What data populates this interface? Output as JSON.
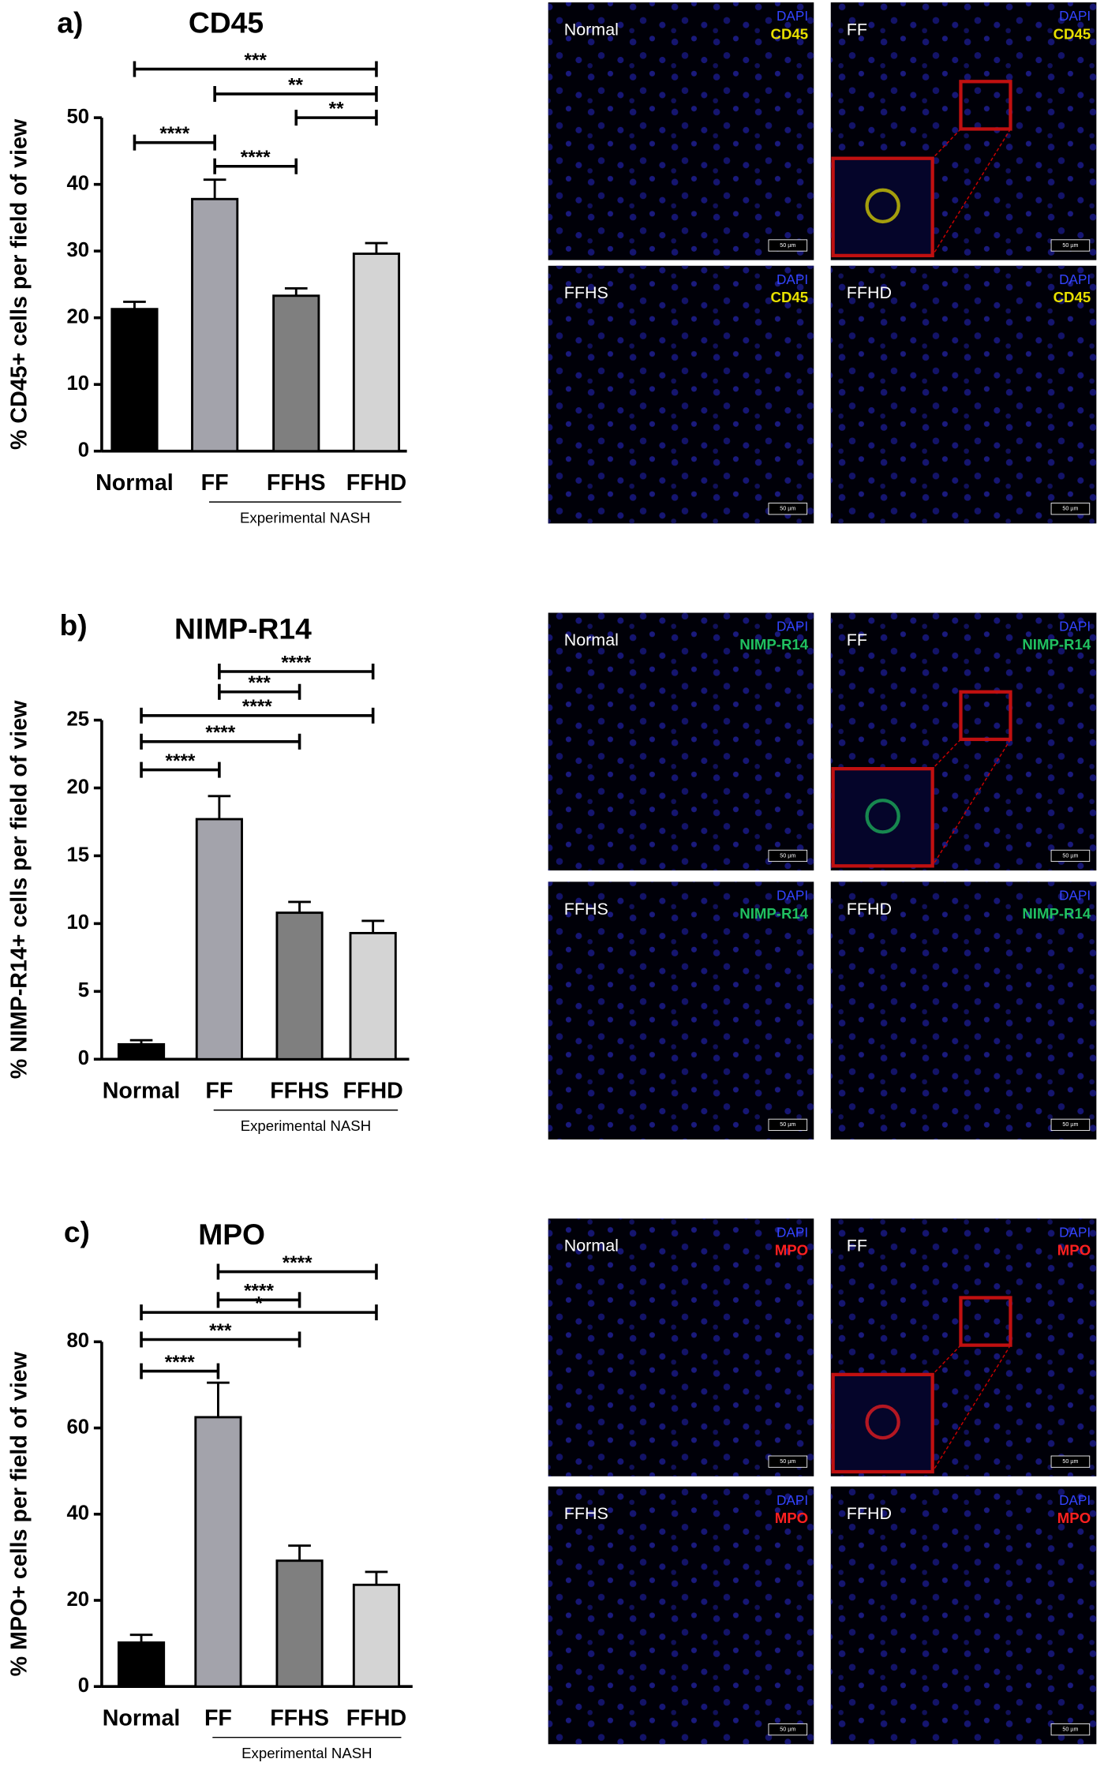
{
  "chart_data": [
    {
      "type": "bar",
      "panel_label": "a)",
      "title": "CD45",
      "y_label": "% CD45+ cells per field of view",
      "categories": [
        "Normal",
        "FF",
        "FFHS",
        "FFHD"
      ],
      "values": [
        21.3,
        37.8,
        23.3,
        29.6
      ],
      "errors": [
        1.1,
        2.9,
        1.1,
        1.6
      ],
      "colors": [
        "#000000",
        "#a3a3ab",
        "#7f7f7f",
        "#d4d4d4"
      ],
      "ylim": [
        0,
        50
      ],
      "yticks": [
        0,
        10,
        20,
        30,
        40,
        50
      ],
      "group_label": "Experimental NASH",
      "significance": [
        {
          "groups": [
            "Normal",
            "FFHD"
          ],
          "label": "***"
        },
        {
          "groups": [
            "FF",
            "FFHD"
          ],
          "label": "**"
        },
        {
          "groups": [
            "FFHS",
            "FFHD"
          ],
          "label": "**"
        },
        {
          "groups": [
            "Normal",
            "FF"
          ],
          "label": "****"
        },
        {
          "groups": [
            "FF",
            "FFHS"
          ],
          "label": "****"
        }
      ],
      "stain_color": "#e8e000",
      "scale_bar": "50 µm",
      "images": [
        {
          "name": "Normal",
          "stains": [
            "DAPI",
            "CD45"
          ]
        },
        {
          "name": "FF",
          "stains": [
            "DAPI",
            "CD45"
          ]
        },
        {
          "name": "FFHS",
          "stains": [
            "DAPI",
            "CD45"
          ]
        },
        {
          "name": "FFHD",
          "stains": [
            "DAPI",
            "CD45"
          ]
        }
      ]
    },
    {
      "type": "bar",
      "panel_label": "b)",
      "title": "NIMP-R14",
      "y_label": "% NIMP-R14+ cells per field of view",
      "categories": [
        "Normal",
        "FF",
        "FFHS",
        "FFHD"
      ],
      "values": [
        1.1,
        17.7,
        10.8,
        9.3
      ],
      "errors": [
        0.3,
        1.7,
        0.8,
        0.9
      ],
      "colors": [
        "#000000",
        "#a3a3ab",
        "#7f7f7f",
        "#d4d4d4"
      ],
      "ylim": [
        0,
        25
      ],
      "yticks": [
        0,
        5,
        10,
        15,
        20,
        25
      ],
      "group_label": "Experimental NASH",
      "significance": [
        {
          "groups": [
            "FF",
            "FFHD"
          ],
          "label": "****"
        },
        {
          "groups": [
            "FF",
            "FFHS"
          ],
          "label": "***"
        },
        {
          "groups": [
            "Normal",
            "FFHD"
          ],
          "label": "****"
        },
        {
          "groups": [
            "Normal",
            "FFHS"
          ],
          "label": "****"
        },
        {
          "groups": [
            "Normal",
            "FF"
          ],
          "label": "****"
        }
      ],
      "stain_color": "#20c060",
      "scale_bar": "50 µm",
      "images": [
        {
          "name": "Normal",
          "stains": [
            "DAPI",
            "NIMP-R14"
          ]
        },
        {
          "name": "FF",
          "stains": [
            "DAPI",
            "NIMP-R14"
          ]
        },
        {
          "name": "FFHS",
          "stains": [
            "DAPI",
            "NIMP-R14"
          ]
        },
        {
          "name": "FFHD",
          "stains": [
            "DAPI",
            "NIMP-R14"
          ]
        }
      ]
    },
    {
      "type": "bar",
      "panel_label": "c)",
      "title": "MPO",
      "y_label": "% MPO+ cells per field of view",
      "categories": [
        "Normal",
        "FF",
        "FFHS",
        "FFHD"
      ],
      "values": [
        10.2,
        62.5,
        29.2,
        23.6
      ],
      "errors": [
        1.8,
        8,
        3.5,
        3
      ],
      "colors": [
        "#000000",
        "#a3a3ab",
        "#7f7f7f",
        "#d4d4d4"
      ],
      "ylim": [
        0,
        80
      ],
      "yticks": [
        0,
        20,
        40,
        60,
        80
      ],
      "group_label": "Experimental NASH",
      "significance": [
        {
          "groups": [
            "FF",
            "FFHD"
          ],
          "label": "****"
        },
        {
          "groups": [
            "FF",
            "FFHS"
          ],
          "label": "****"
        },
        {
          "groups": [
            "Normal",
            "FFHD"
          ],
          "label": "*"
        },
        {
          "groups": [
            "Normal",
            "FFHS"
          ],
          "label": "***"
        },
        {
          "groups": [
            "Normal",
            "FF"
          ],
          "label": "****"
        }
      ],
      "stain_color": "#ff2020",
      "scale_bar": "50 µm",
      "images": [
        {
          "name": "Normal",
          "stains": [
            "DAPI",
            "MPO"
          ]
        },
        {
          "name": "FF",
          "stains": [
            "DAPI",
            "MPO"
          ]
        },
        {
          "name": "FFHS",
          "stains": [
            "DAPI",
            "MPO"
          ]
        },
        {
          "name": "FFHD",
          "stains": [
            "DAPI",
            "MPO"
          ]
        }
      ]
    }
  ]
}
